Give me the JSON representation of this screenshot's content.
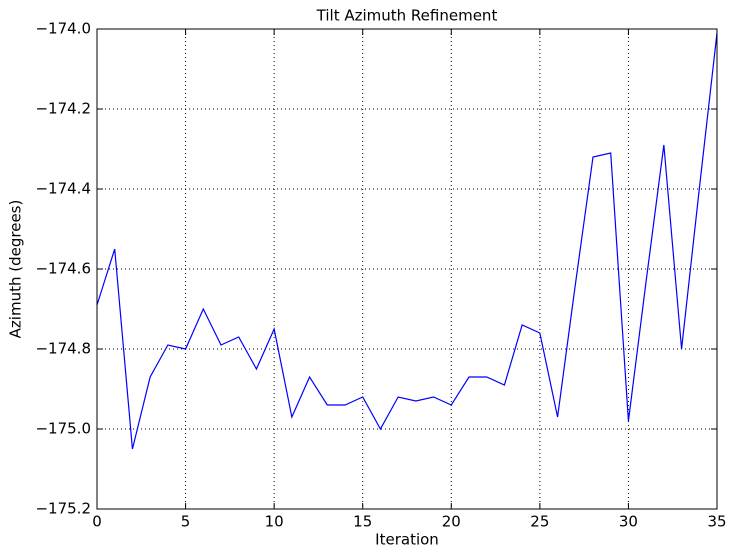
{
  "chart_data": {
    "type": "line",
    "title": "Tilt Azimuth Refinement",
    "x_label": "Iteration",
    "y_label": "Azimuth (degrees)",
    "x": [
      0,
      1,
      2,
      3,
      4,
      5,
      6,
      7,
      8,
      9,
      10,
      11,
      12,
      13,
      14,
      15,
      16,
      17,
      18,
      19,
      20,
      21,
      22,
      23,
      24,
      25,
      26,
      27,
      28,
      29,
      30,
      31,
      32,
      33,
      34,
      35
    ],
    "series": [
      {
        "name": "Azimuth",
        "color": "#0000ff",
        "values": [
          -174.69,
          -174.55,
          -175.05,
          -174.87,
          -174.79,
          -174.8,
          -174.7,
          -174.79,
          -174.77,
          -174.85,
          -174.75,
          -174.97,
          -174.87,
          -174.94,
          -174.94,
          -174.92,
          -175.0,
          -174.92,
          -174.93,
          -174.92,
          -174.94,
          -174.87,
          -174.87,
          -174.89,
          -174.74,
          -174.76,
          -174.97,
          -174.64,
          -174.32,
          -174.31,
          -174.98,
          -174.63,
          -174.29,
          -174.8,
          -174.4,
          -174.01
        ]
      }
    ],
    "xlim": [
      0,
      35
    ],
    "xticks": [
      0,
      5,
      10,
      15,
      20,
      25,
      30,
      35
    ],
    "ylim": [
      -175.2,
      -174.0
    ],
    "yticks": [
      {
        "value": -175.2,
        "label": "−175.2"
      },
      {
        "value": -175.0,
        "label": "−175.0"
      },
      {
        "value": -174.8,
        "label": "−174.8"
      },
      {
        "value": -174.6,
        "label": "−174.6"
      },
      {
        "value": -174.4,
        "label": "−174.4"
      },
      {
        "value": -174.2,
        "label": "−174.2"
      },
      {
        "value": -174.0,
        "label": "−174.0"
      }
    ],
    "grid": true
  }
}
